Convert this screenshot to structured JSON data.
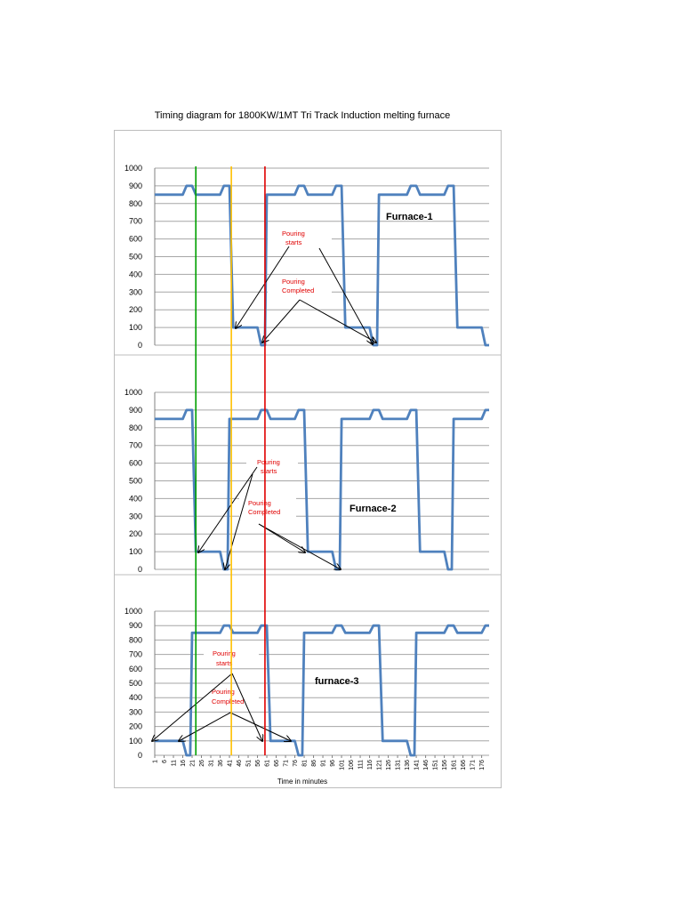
{
  "title": "Timing diagram for 1800KW/1MT Tri Track Induction melting furnace",
  "chart_data": {
    "type": "line",
    "xlabel": "Time in minutes",
    "x_ticks": [
      "1",
      "6",
      "11",
      "16",
      "21",
      "26",
      "31",
      "36",
      "41",
      "46",
      "51",
      "56",
      "61",
      "66",
      "71",
      "76",
      "81",
      "86",
      "91",
      "96",
      "101",
      "106",
      "111",
      "116",
      "121",
      "126",
      "131",
      "136",
      "141",
      "146",
      "151",
      "156",
      "161",
      "166",
      "171",
      "176"
    ],
    "x_range": [
      1,
      180
    ],
    "ylim": [
      0,
      1000
    ],
    "y_ticks": [
      "0",
      "100",
      "200",
      "300",
      "400",
      "500",
      "600",
      "700",
      "800",
      "900",
      "1000"
    ],
    "grid": true,
    "line_color": "#4f81bd",
    "panels": [
      {
        "label": "Furnace-1",
        "points": [
          [
            1,
            850
          ],
          [
            16,
            850
          ],
          [
            18,
            900
          ],
          [
            21,
            900
          ],
          [
            23,
            850
          ],
          [
            36,
            850
          ],
          [
            38,
            900
          ],
          [
            41,
            900
          ],
          [
            43,
            100
          ],
          [
            56,
            100
          ],
          [
            58,
            0
          ],
          [
            60,
            0
          ],
          [
            61,
            850
          ],
          [
            76,
            850
          ],
          [
            78,
            900
          ],
          [
            81,
            900
          ],
          [
            83,
            850
          ],
          [
            96,
            850
          ],
          [
            98,
            900
          ],
          [
            101,
            900
          ],
          [
            103,
            100
          ],
          [
            116,
            100
          ],
          [
            118,
            0
          ],
          [
            120,
            0
          ],
          [
            121,
            850
          ],
          [
            136,
            850
          ],
          [
            138,
            900
          ],
          [
            141,
            900
          ],
          [
            143,
            850
          ],
          [
            156,
            850
          ],
          [
            158,
            900
          ],
          [
            161,
            900
          ],
          [
            163,
            100
          ],
          [
            176,
            100
          ],
          [
            178,
            0
          ],
          [
            180,
            0
          ]
        ],
        "annotations": [
          "Pouring starts",
          "Pouring Completed"
        ]
      },
      {
        "label": "Furnace-2",
        "points": [
          [
            1,
            850
          ],
          [
            16,
            850
          ],
          [
            18,
            900
          ],
          [
            21,
            900
          ],
          [
            23,
            100
          ],
          [
            36,
            100
          ],
          [
            38,
            0
          ],
          [
            40,
            0
          ],
          [
            41,
            850
          ],
          [
            56,
            850
          ],
          [
            58,
            900
          ],
          [
            61,
            900
          ],
          [
            63,
            850
          ],
          [
            76,
            850
          ],
          [
            78,
            900
          ],
          [
            81,
            900
          ],
          [
            83,
            100
          ],
          [
            96,
            100
          ],
          [
            98,
            0
          ],
          [
            100,
            0
          ],
          [
            101,
            850
          ],
          [
            116,
            850
          ],
          [
            118,
            900
          ],
          [
            121,
            900
          ],
          [
            123,
            850
          ],
          [
            136,
            850
          ],
          [
            138,
            900
          ],
          [
            141,
            900
          ],
          [
            143,
            100
          ],
          [
            156,
            100
          ],
          [
            158,
            0
          ],
          [
            160,
            0
          ],
          [
            161,
            850
          ],
          [
            176,
            850
          ],
          [
            178,
            900
          ],
          [
            180,
            900
          ]
        ],
        "annotations": [
          "Pouring starts",
          "Pouring Completed"
        ]
      },
      {
        "label": "furnace-3",
        "points": [
          [
            1,
            100
          ],
          [
            16,
            100
          ],
          [
            18,
            0
          ],
          [
            20,
            0
          ],
          [
            21,
            850
          ],
          [
            36,
            850
          ],
          [
            38,
            900
          ],
          [
            41,
            900
          ],
          [
            43,
            850
          ],
          [
            56,
            850
          ],
          [
            58,
            900
          ],
          [
            61,
            900
          ],
          [
            63,
            100
          ],
          [
            76,
            100
          ],
          [
            78,
            0
          ],
          [
            80,
            0
          ],
          [
            81,
            850
          ],
          [
            96,
            850
          ],
          [
            98,
            900
          ],
          [
            101,
            900
          ],
          [
            103,
            850
          ],
          [
            116,
            850
          ],
          [
            118,
            900
          ],
          [
            121,
            900
          ],
          [
            123,
            100
          ],
          [
            136,
            100
          ],
          [
            138,
            0
          ],
          [
            140,
            0
          ],
          [
            141,
            850
          ],
          [
            156,
            850
          ],
          [
            158,
            900
          ],
          [
            161,
            900
          ],
          [
            163,
            850
          ],
          [
            176,
            850
          ],
          [
            178,
            900
          ],
          [
            180,
            900
          ]
        ],
        "annotations": [
          "Pouring starts",
          "Pouring Completed"
        ]
      }
    ],
    "markers": [
      {
        "x": 23,
        "color": "#00a000"
      },
      {
        "x": 42,
        "color": "#ffc000"
      },
      {
        "x": 60,
        "color": "#e00000"
      }
    ]
  }
}
